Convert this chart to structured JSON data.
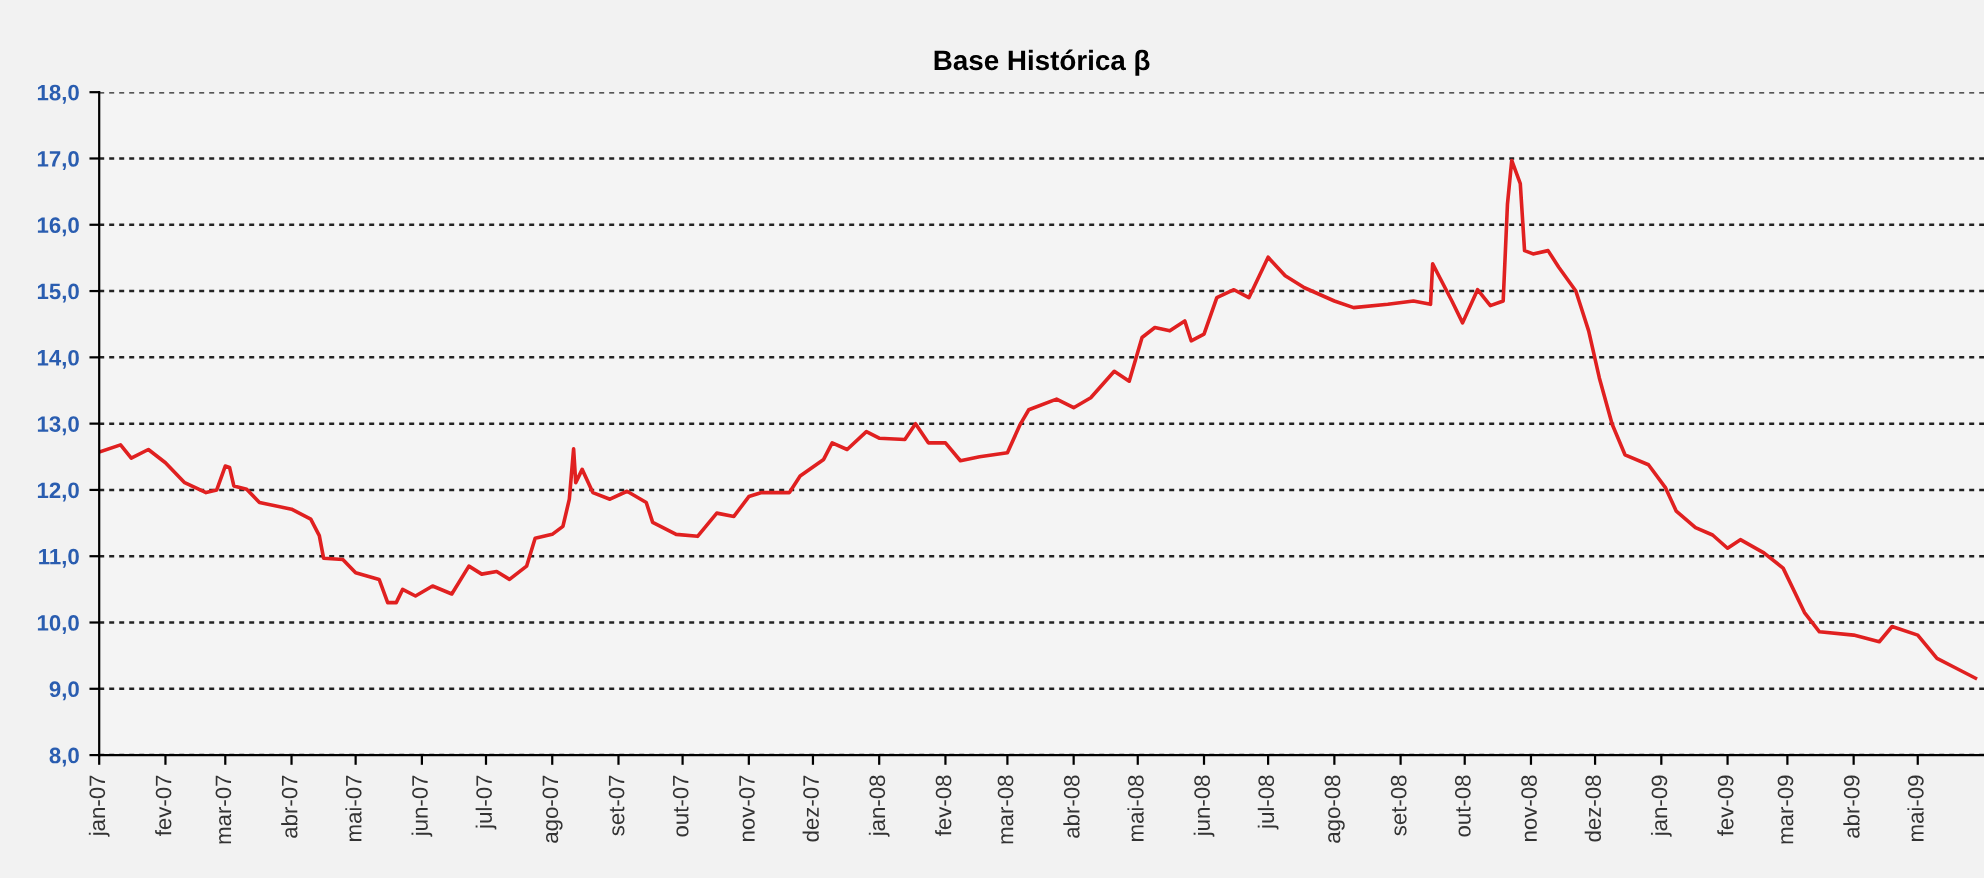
{
  "chart_data": {
    "type": "line",
    "title": "Base Histórica β",
    "x": [
      "2007-01-01",
      "2007-01-11",
      "2007-01-16",
      "2007-01-24",
      "2007-02-01",
      "2007-02-10",
      "2007-02-20",
      "2007-02-25",
      "2007-03-01",
      "2007-03-03",
      "2007-03-05",
      "2007-03-11",
      "2007-03-17",
      "2007-04-01",
      "2007-04-10",
      "2007-04-14",
      "2007-04-16",
      "2007-04-25",
      "2007-05-01",
      "2007-05-12",
      "2007-05-16",
      "2007-05-20",
      "2007-05-23",
      "2007-05-29",
      "2007-06-06",
      "2007-06-15",
      "2007-06-23",
      "2007-06-29",
      "2007-07-06",
      "2007-07-12",
      "2007-07-20",
      "2007-07-24",
      "2007-08-01",
      "2007-08-06",
      "2007-08-09",
      "2007-08-11",
      "2007-08-12",
      "2007-08-15",
      "2007-08-20",
      "2007-08-28",
      "2007-09-05",
      "2007-09-14",
      "2007-09-17",
      "2007-09-28",
      "2007-10-08",
      "2007-10-17",
      "2007-10-25",
      "2007-11-01",
      "2007-11-07",
      "2007-11-20",
      "2007-11-25",
      "2007-12-06",
      "2007-12-10",
      "2007-12-17",
      "2007-12-26",
      "2008-01-01",
      "2008-01-13",
      "2008-01-18",
      "2008-01-24",
      "2008-02-01",
      "2008-02-08",
      "2008-02-17",
      "2008-03-01",
      "2008-03-07",
      "2008-03-11",
      "2008-03-24",
      "2008-04-01",
      "2008-04-09",
      "2008-04-20",
      "2008-04-27",
      "2008-05-03",
      "2008-05-09",
      "2008-05-16",
      "2008-05-23",
      "2008-05-26",
      "2008-06-01",
      "2008-06-07",
      "2008-06-15",
      "2008-06-22",
      "2008-07-01",
      "2008-07-09",
      "2008-07-18",
      "2008-08-01",
      "2008-08-10",
      "2008-08-26",
      "2008-09-07",
      "2008-09-15",
      "2008-09-16",
      "2008-09-25",
      "2008-09-30",
      "2008-10-07",
      "2008-10-13",
      "2008-10-19",
      "2008-10-21",
      "2008-10-23",
      "2008-10-27",
      "2008-10-29",
      "2008-11-02",
      "2008-11-09",
      "2008-11-14",
      "2008-11-22",
      "2008-11-28",
      "2008-12-03",
      "2008-12-09",
      "2008-12-15",
      "2008-12-26",
      "2009-01-03",
      "2009-01-08",
      "2009-01-17",
      "2009-01-25",
      "2009-02-01",
      "2009-02-07",
      "2009-02-18",
      "2009-02-27",
      "2009-03-09",
      "2009-03-16",
      "2009-04-01",
      "2009-04-13",
      "2009-04-19",
      "2009-05-01",
      "2009-05-10",
      "2009-05-19",
      "2009-05-28"
    ],
    "series": [
      {
        "color": "#e02020",
        "values": [
          12.57,
          12.68,
          12.48,
          12.61,
          12.41,
          12.11,
          11.96,
          12.0,
          12.36,
          12.34,
          12.06,
          12.01,
          11.81,
          11.71,
          11.56,
          11.31,
          10.97,
          10.95,
          10.75,
          10.65,
          10.3,
          10.3,
          10.5,
          10.4,
          10.55,
          10.43,
          10.85,
          10.73,
          10.77,
          10.65,
          10.85,
          11.27,
          11.33,
          11.45,
          11.86,
          12.62,
          12.11,
          12.31,
          11.96,
          11.86,
          11.98,
          11.81,
          11.51,
          11.33,
          11.3,
          11.65,
          11.6,
          11.9,
          11.96,
          11.96,
          12.21,
          12.46,
          12.71,
          12.61,
          12.88,
          12.78,
          12.76,
          13.0,
          12.71,
          12.71,
          12.44,
          12.5,
          12.56,
          12.99,
          13.21,
          13.37,
          13.24,
          13.39,
          13.79,
          13.64,
          14.3,
          14.45,
          14.4,
          14.55,
          14.25,
          14.35,
          14.9,
          15.02,
          14.9,
          15.51,
          15.23,
          15.05,
          14.85,
          14.75,
          14.8,
          14.85,
          14.8,
          15.41,
          14.85,
          14.52,
          15.02,
          14.78,
          14.85,
          16.31,
          16.97,
          16.62,
          15.61,
          15.56,
          15.61,
          15.36,
          15.0,
          14.4,
          13.69,
          12.99,
          12.53,
          12.38,
          12.03,
          11.68,
          11.43,
          11.32,
          11.12,
          11.25,
          11.05,
          10.82,
          10.15,
          9.86,
          9.81,
          9.71,
          9.94,
          9.81,
          9.46,
          9.31,
          9.16
        ]
      }
    ],
    "xlim": [
      "2007-01-01",
      "2009-06-01"
    ],
    "xticks": [
      {
        "value": "2007-01-01",
        "label": "jan-07"
      },
      {
        "value": "2007-02-01",
        "label": "fev-07"
      },
      {
        "value": "2007-03-01",
        "label": "mar-07"
      },
      {
        "value": "2007-04-01",
        "label": "abr-07"
      },
      {
        "value": "2007-05-01",
        "label": "mai-07"
      },
      {
        "value": "2007-06-01",
        "label": "jun-07"
      },
      {
        "value": "2007-07-01",
        "label": "jul-07"
      },
      {
        "value": "2007-08-01",
        "label": "ago-07"
      },
      {
        "value": "2007-09-01",
        "label": "set-07"
      },
      {
        "value": "2007-10-01",
        "label": "out-07"
      },
      {
        "value": "2007-11-01",
        "label": "nov-07"
      },
      {
        "value": "2007-12-01",
        "label": "dez-07"
      },
      {
        "value": "2008-01-01",
        "label": "jan-08"
      },
      {
        "value": "2008-02-01",
        "label": "fev-08"
      },
      {
        "value": "2008-03-01",
        "label": "mar-08"
      },
      {
        "value": "2008-04-01",
        "label": "abr-08"
      },
      {
        "value": "2008-05-01",
        "label": "mai-08"
      },
      {
        "value": "2008-06-01",
        "label": "jun-08"
      },
      {
        "value": "2008-07-01",
        "label": "jul-08"
      },
      {
        "value": "2008-08-01",
        "label": "ago-08"
      },
      {
        "value": "2008-09-01",
        "label": "set-08"
      },
      {
        "value": "2008-10-01",
        "label": "out-08"
      },
      {
        "value": "2008-11-01",
        "label": "nov-08"
      },
      {
        "value": "2008-12-01",
        "label": "dez-08"
      },
      {
        "value": "2009-01-01",
        "label": "jan-09"
      },
      {
        "value": "2009-02-01",
        "label": "fev-09"
      },
      {
        "value": "2009-03-01",
        "label": "mar-09"
      },
      {
        "value": "2009-04-01",
        "label": "abr-09"
      },
      {
        "value": "2009-05-01",
        "label": "mai-09"
      }
    ],
    "ylim": [
      8,
      18
    ],
    "yticks": [
      {
        "value": 8,
        "label": "8,0"
      },
      {
        "value": 9,
        "label": "9,0"
      },
      {
        "value": 10,
        "label": "10,0"
      },
      {
        "value": 11,
        "label": "11,0"
      },
      {
        "value": 12,
        "label": "12,0"
      },
      {
        "value": 13,
        "label": "13,0"
      },
      {
        "value": 14,
        "label": "14,0"
      },
      {
        "value": 15,
        "label": "15,0"
      },
      {
        "value": 16,
        "label": "16,0"
      },
      {
        "value": 17,
        "label": "17,0"
      },
      {
        "value": 18,
        "label": "18,0"
      }
    ],
    "grid": "y",
    "marker": "none",
    "line_style": "solid"
  }
}
